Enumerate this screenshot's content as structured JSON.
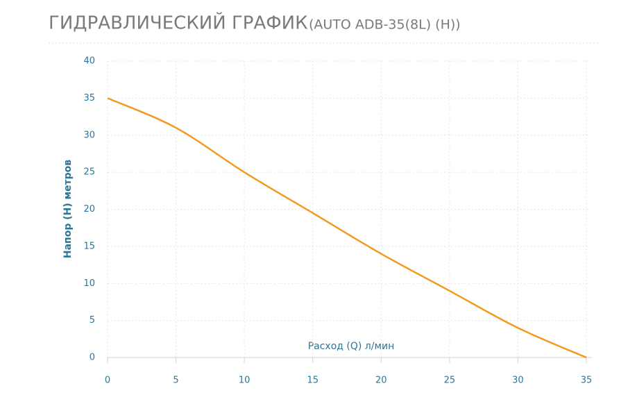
{
  "chart_data": {
    "type": "line",
    "title": "ГИДРАВЛИЧЕСКИЙ ГРАФИК",
    "subtitle": "(AUTO ADB-35(8L) (H))",
    "x_label": "Расход (Q) л/мин",
    "y_label": "Напор (H) метров",
    "x": [
      0,
      5,
      10,
      15,
      20,
      25,
      30,
      35
    ],
    "series": [
      {
        "name": "AUTO ADB-35(8L) (H)",
        "color": "#f39a1e",
        "values": [
          35,
          31,
          25,
          19.5,
          14,
          9,
          4,
          0
        ]
      }
    ],
    "xlim": [
      0,
      35
    ],
    "xticks": [
      0,
      5,
      10,
      15,
      20,
      25,
      30,
      35
    ],
    "ylim": [
      0,
      40
    ],
    "yticks": [
      0,
      5,
      10,
      15,
      20,
      25,
      30,
      35,
      40
    ],
    "grid": true
  }
}
